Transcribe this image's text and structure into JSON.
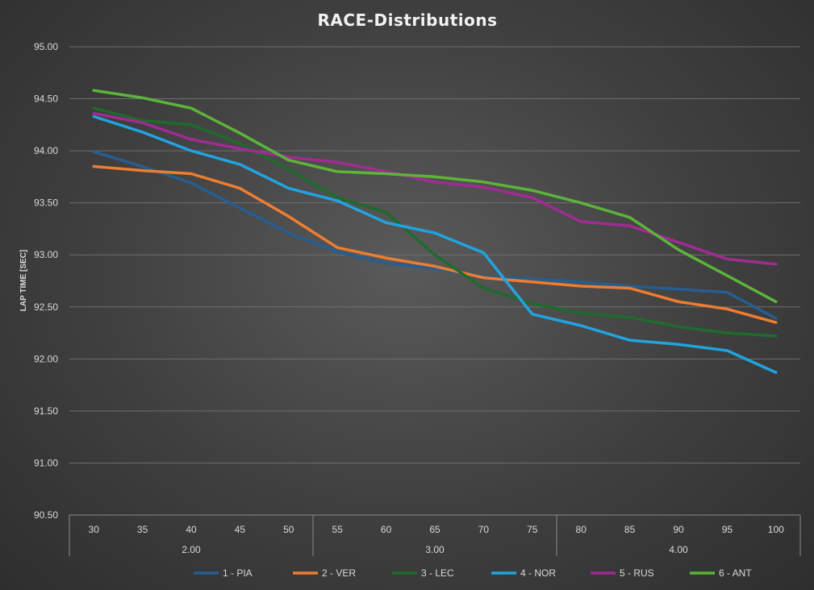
{
  "chart_data": {
    "type": "line",
    "title": "RACE-Distributions",
    "xlabel": "",
    "ylabel": "LAP TIME [SEC]",
    "ylim": [
      90.5,
      95.0
    ],
    "yticks": [
      "90.50",
      "91.00",
      "91.50",
      "92.00",
      "92.50",
      "93.00",
      "93.50",
      "94.00",
      "94.50",
      "95.00"
    ],
    "categories": [
      "30",
      "35",
      "40",
      "45",
      "50",
      "55",
      "60",
      "65",
      "70",
      "75",
      "80",
      "85",
      "90",
      "95",
      "100"
    ],
    "groups": [
      {
        "label": "2.00",
        "count": 5
      },
      {
        "label": "3.00",
        "count": 5
      },
      {
        "label": "4.00",
        "count": 5
      }
    ],
    "grid": true,
    "legend_position": "bottom",
    "series": [
      {
        "name": "1 - PIA",
        "color": "#255e91",
        "values": [
          93.99,
          93.85,
          93.69,
          93.45,
          93.21,
          93.03,
          92.92,
          92.87,
          92.79,
          92.77,
          92.74,
          92.7,
          92.67,
          92.64,
          92.39
        ]
      },
      {
        "name": "2 - VER",
        "color": "#ed7d31",
        "values": [
          93.85,
          93.81,
          93.78,
          93.64,
          93.37,
          93.07,
          92.97,
          92.89,
          92.78,
          92.74,
          92.7,
          92.68,
          92.55,
          92.48,
          92.35
        ]
      },
      {
        "name": "3 - LEC",
        "color": "#1e6b2d",
        "values": [
          94.41,
          94.29,
          94.25,
          94.07,
          93.82,
          93.55,
          93.41,
          93.0,
          92.68,
          92.53,
          92.44,
          92.4,
          92.31,
          92.25,
          92.22
        ]
      },
      {
        "name": "4 - NOR",
        "color": "#21a3e0",
        "values": [
          94.33,
          94.18,
          94.0,
          93.87,
          93.64,
          93.52,
          93.31,
          93.21,
          93.02,
          92.43,
          92.32,
          92.18,
          92.14,
          92.08,
          91.87
        ]
      },
      {
        "name": "5 - RUS",
        "color": "#a02b93",
        "values": [
          94.36,
          94.27,
          94.11,
          94.02,
          93.94,
          93.89,
          93.8,
          93.7,
          93.65,
          93.55,
          93.32,
          93.28,
          93.12,
          92.96,
          92.91
        ]
      },
      {
        "name": "6 - ANT",
        "color": "#5db43a",
        "values": [
          94.58,
          94.51,
          94.41,
          94.17,
          93.91,
          93.8,
          93.78,
          93.75,
          93.7,
          93.62,
          93.5,
          93.36,
          93.05,
          92.8,
          92.55
        ]
      }
    ]
  }
}
